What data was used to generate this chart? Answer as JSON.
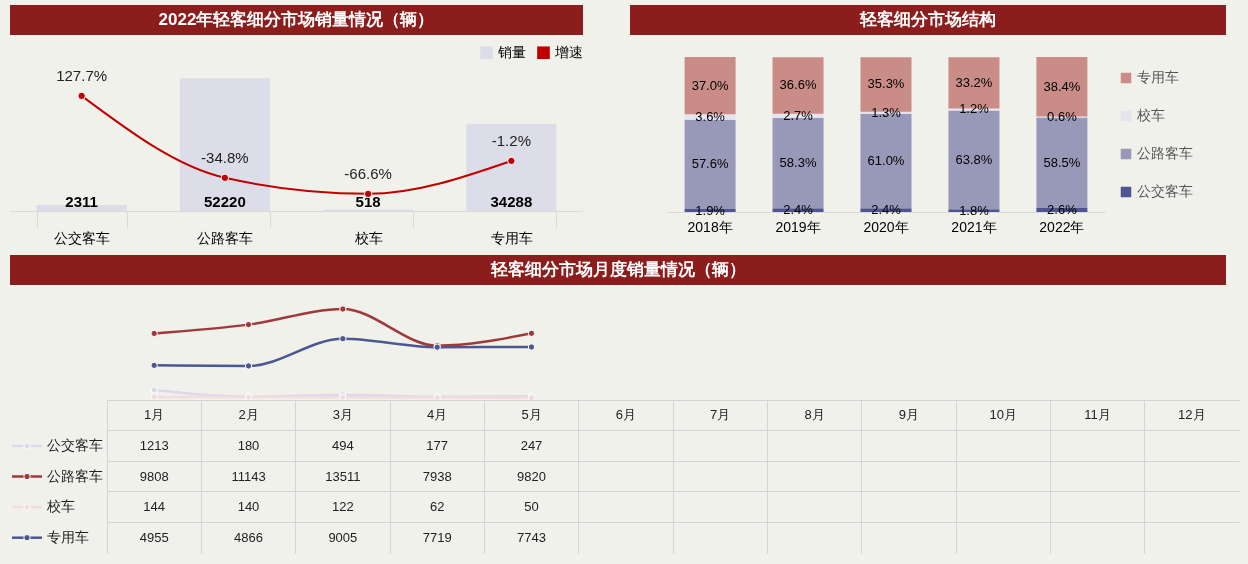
{
  "chart_data": [
    {
      "type": "bar",
      "title": "2022年轻客细分市场销量情况（辆）",
      "categories": [
        "公交客车",
        "公路客车",
        "校车",
        "专用车"
      ],
      "legend": "top right",
      "marker": "circle",
      "tick_labels": "x",
      "series": [
        {
          "name": "销量",
          "type": "bar",
          "color": "#dcdde8",
          "values": [
            2311,
            52220,
            518,
            34288
          ],
          "value_labels": [
            "2311",
            "52220",
            "518",
            "34288"
          ]
        },
        {
          "name": "增速",
          "type": "line",
          "axis": "y2",
          "color": "#c00000",
          "values": [
            127.7,
            -34.8,
            -66.6,
            -1.2
          ],
          "value_labels": [
            "127.7%",
            "-34.8%",
            "-66.6%",
            "-1.2%"
          ]
        }
      ]
    },
    {
      "type": "bar",
      "title": "轻客细分市场结构",
      "categories": [
        "2018年",
        "2019年",
        "2020年",
        "2021年",
        "2022年"
      ],
      "stacked": true,
      "legend": "right",
      "tick_labels": "x",
      "series": [
        {
          "name": "公交客车",
          "color": "#4f5590",
          "values": [
            1.9,
            2.4,
            2.4,
            1.8,
            2.6
          ],
          "value_labels": [
            "1.9%",
            "2.4%",
            "2.4%",
            "1.8%",
            "2.6%"
          ]
        },
        {
          "name": "公路客车",
          "color": "#9899b8",
          "values": [
            57.6,
            58.3,
            61.0,
            63.8,
            58.5
          ],
          "value_labels": [
            "57.6%",
            "58.3%",
            "61.0%",
            "63.8%",
            "58.5%"
          ]
        },
        {
          "name": "校车",
          "color": "#e6e4ef",
          "values": [
            3.6,
            2.7,
            1.3,
            1.2,
            0.6
          ],
          "value_labels": [
            "3.6%",
            "2.7%",
            "1.3%",
            "1.2%",
            "0.6%"
          ]
        },
        {
          "name": "专用车",
          "color": "#c98c86",
          "values": [
            37.0,
            36.6,
            35.3,
            33.2,
            38.4
          ],
          "value_labels": [
            "37.0%",
            "36.6%",
            "35.3%",
            "33.2%",
            "38.4%"
          ]
        }
      ]
    },
    {
      "type": "line",
      "title": "轻客细分市场月度销量情况（辆）",
      "categories": [
        "1月",
        "2月",
        "3月",
        "4月",
        "5月",
        "6月",
        "7月",
        "8月",
        "9月",
        "10月",
        "11月",
        "12月"
      ],
      "data_labels": true,
      "legend": "left",
      "marker": "circle",
      "tick_labels": "x",
      "series": [
        {
          "name": "公交客车",
          "color": "#dcd9ea",
          "values": [
            1213,
            180,
            494,
            177,
            247,
            null,
            null,
            null,
            null,
            null,
            null,
            null
          ]
        },
        {
          "name": "公路客车",
          "color": "#9e3a3a",
          "values": [
            9808,
            11143,
            13511,
            7938,
            9820,
            null,
            null,
            null,
            null,
            null,
            null,
            null
          ]
        },
        {
          "name": "校车",
          "color": "#f2dcdc",
          "values": [
            144,
            140,
            122,
            62,
            50,
            null,
            null,
            null,
            null,
            null,
            null,
            null
          ]
        },
        {
          "name": "专用车",
          "color": "#4b5790",
          "values": [
            4955,
            4866,
            9005,
            7719,
            7743,
            null,
            null,
            null,
            null,
            null,
            null,
            null
          ]
        }
      ]
    }
  ]
}
